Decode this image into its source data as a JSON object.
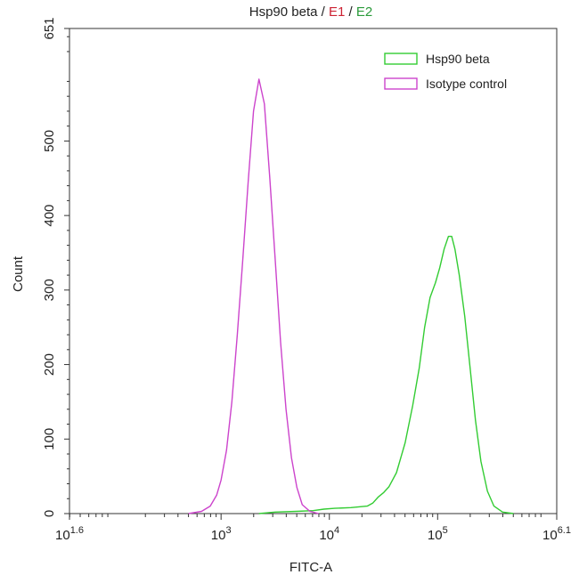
{
  "chart_data": {
    "type": "line",
    "title_parts": [
      {
        "text": "Hsp90 beta",
        "color": "#222222"
      },
      {
        "text": " / ",
        "color": "#222222"
      },
      {
        "text": "E1",
        "color": "#cc2233"
      },
      {
        "text": " / ",
        "color": "#222222"
      },
      {
        "text": "E2",
        "color": "#2a9a3a"
      }
    ],
    "xlabel": "FITC-A",
    "ylabel": "Count",
    "x_scale": "log10",
    "xlim": [
      1.6,
      6.1
    ],
    "ylim": [
      0,
      651
    ],
    "x_ticks": [
      {
        "exp": 1.6,
        "base": "10",
        "sup": "1.6"
      },
      {
        "exp": 3,
        "base": "10",
        "sup": "3"
      },
      {
        "exp": 4,
        "base": "10",
        "sup": "4"
      },
      {
        "exp": 5,
        "base": "10",
        "sup": "5"
      },
      {
        "exp": 6.1,
        "base": "10",
        "sup": "6.1"
      }
    ],
    "y_ticks": [
      0,
      100,
      200,
      300,
      400,
      500,
      651
    ],
    "legend_position": "top-right",
    "grid": false,
    "series": [
      {
        "name": "Hsp90 beta",
        "color": "#33cc33",
        "points": [
          [
            3.35,
            0
          ],
          [
            3.5,
            2
          ],
          [
            3.7,
            3
          ],
          [
            3.85,
            4
          ],
          [
            3.95,
            6
          ],
          [
            4.05,
            7
          ],
          [
            4.2,
            8
          ],
          [
            4.35,
            10
          ],
          [
            4.4,
            14
          ],
          [
            4.45,
            22
          ],
          [
            4.5,
            28
          ],
          [
            4.55,
            36
          ],
          [
            4.62,
            55
          ],
          [
            4.7,
            95
          ],
          [
            4.77,
            145
          ],
          [
            4.83,
            195
          ],
          [
            4.88,
            250
          ],
          [
            4.93,
            290
          ],
          [
            4.98,
            310
          ],
          [
            5.02,
            330
          ],
          [
            5.06,
            355
          ],
          [
            5.1,
            372
          ],
          [
            5.13,
            372
          ],
          [
            5.16,
            355
          ],
          [
            5.2,
            320
          ],
          [
            5.25,
            265
          ],
          [
            5.3,
            195
          ],
          [
            5.35,
            125
          ],
          [
            5.4,
            70
          ],
          [
            5.46,
            30
          ],
          [
            5.52,
            10
          ],
          [
            5.6,
            2
          ],
          [
            5.7,
            0
          ]
        ]
      },
      {
        "name": "Isotype control",
        "color": "#cc44cc",
        "points": [
          [
            2.7,
            0
          ],
          [
            2.82,
            3
          ],
          [
            2.9,
            10
          ],
          [
            2.96,
            25
          ],
          [
            3.0,
            45
          ],
          [
            3.05,
            85
          ],
          [
            3.1,
            150
          ],
          [
            3.15,
            240
          ],
          [
            3.2,
            340
          ],
          [
            3.25,
            445
          ],
          [
            3.3,
            540
          ],
          [
            3.35,
            583
          ],
          [
            3.4,
            550
          ],
          [
            3.45,
            450
          ],
          [
            3.5,
            340
          ],
          [
            3.55,
            230
          ],
          [
            3.6,
            140
          ],
          [
            3.65,
            75
          ],
          [
            3.7,
            35
          ],
          [
            3.75,
            12
          ],
          [
            3.82,
            3
          ],
          [
            3.9,
            0
          ]
        ]
      }
    ]
  }
}
